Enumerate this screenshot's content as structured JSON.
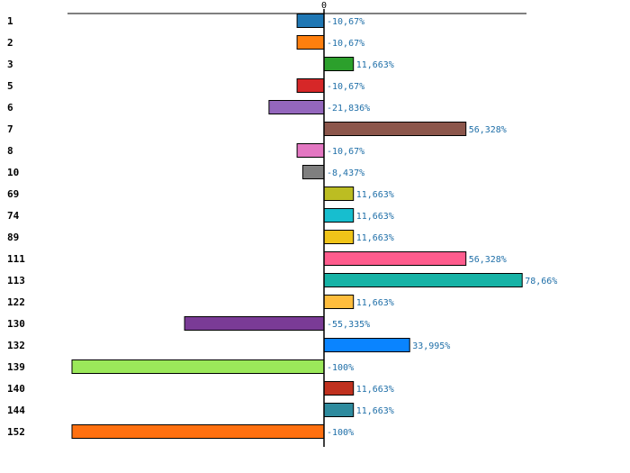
{
  "chart_data": {
    "type": "bar",
    "orientation": "horizontal",
    "title": "",
    "xlabel": "",
    "ylabel": "",
    "xlim": [
      -100,
      78.66
    ],
    "zero_tick_label": "0",
    "categories": [
      "1",
      "2",
      "3",
      "5",
      "6",
      "7",
      "8",
      "10",
      "69",
      "74",
      "89",
      "111",
      "113",
      "122",
      "130",
      "132",
      "139",
      "140",
      "144",
      "152"
    ],
    "values": [
      -10.67,
      -10.67,
      11.663,
      -10.67,
      -21.836,
      56.328,
      -10.67,
      -8.437,
      11.663,
      11.663,
      11.663,
      56.328,
      78.66,
      11.663,
      -55.335,
      33.995,
      -100,
      11.663,
      11.663,
      -100
    ],
    "value_labels": [
      "-10,67%",
      "-10,67%",
      "11,663%",
      "-10,67%",
      "-21,836%",
      "56,328%",
      "-10,67%",
      "-8,437%",
      "11,663%",
      "11,663%",
      "11,663%",
      "56,328%",
      "78,66%",
      "11,663%",
      "-55,335%",
      "33,995%",
      "-100%",
      "11,663%",
      "11,663%",
      "-100%"
    ],
    "colors": [
      "#1f77b4",
      "#ff7f0e",
      "#2ca02c",
      "#d62728",
      "#9467bd",
      "#8c564b",
      "#e377c2",
      "#7f7f7f",
      "#bcbd22",
      "#17becf",
      "#f0c419",
      "#ff5c8d",
      "#17b3a6",
      "#ffbd3d",
      "#7a3b96",
      "#0a84ff",
      "#9be85a",
      "#c0311f",
      "#2e8b9e",
      "#ff7010"
    ]
  }
}
